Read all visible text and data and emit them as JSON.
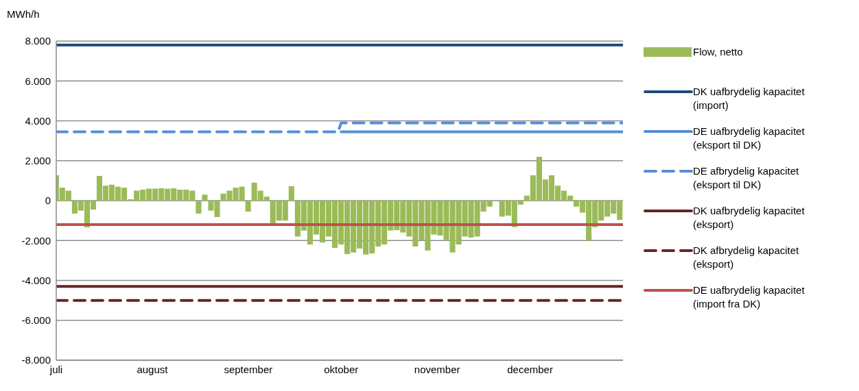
{
  "chart_data": {
    "type": "bar",
    "ylabel": "MWh/h",
    "xlim": [
      "--07-01",
      "--12-31"
    ],
    "xticks": [
      {
        "value": "--07-01",
        "label": "juli"
      },
      {
        "value": "--08-01",
        "label": "august"
      },
      {
        "value": "--09-01",
        "label": "september"
      },
      {
        "value": "--10-01",
        "label": "oktober"
      },
      {
        "value": "--11-01",
        "label": "november"
      },
      {
        "value": "--12-01",
        "label": "december"
      }
    ],
    "ylim": [
      -8000,
      8000
    ],
    "yticks": [
      {
        "value": -8000,
        "label": "-8.000"
      },
      {
        "value": -6000,
        "label": "-6.000"
      },
      {
        "value": -4000,
        "label": "-4.000"
      },
      {
        "value": -2000,
        "label": "-2.000"
      },
      0,
      {
        "value": 2000,
        "label": "2.000"
      },
      {
        "value": 4000,
        "label": "4.000"
      },
      {
        "value": 6000,
        "label": "6.000"
      },
      {
        "value": 8000,
        "label": "8.000"
      }
    ],
    "grid": "y",
    "legend": "right",
    "marker": "none",
    "series": [
      {
        "name": "Flow, netto",
        "color": "#9bbb59",
        "x": [
          "--07-01",
          "--07-03",
          "--07-05",
          "--07-07",
          "--07-09",
          "--07-11",
          "--07-13",
          "--07-15",
          "--07-17",
          "--07-19",
          "--07-21",
          "--07-23",
          "--07-25",
          "--07-27",
          "--07-29",
          "--07-31",
          "--08-02",
          "--08-04",
          "--08-06",
          "--08-08",
          "--08-10",
          "--08-12",
          "--08-14",
          "--08-16",
          "--08-18",
          "--08-20",
          "--08-22",
          "--08-24",
          "--08-26",
          "--08-28",
          "--08-30",
          "--09-01",
          "--09-03",
          "--09-05",
          "--09-07",
          "--09-09",
          "--09-11",
          "--09-13",
          "--09-15",
          "--09-17",
          "--09-19",
          "--09-21",
          "--09-23",
          "--09-25",
          "--09-27",
          "--09-29",
          "--10-01",
          "--10-03",
          "--10-05",
          "--10-07",
          "--10-09",
          "--10-11",
          "--10-13",
          "--10-15",
          "--10-17",
          "--10-19",
          "--10-21",
          "--10-23",
          "--10-25",
          "--10-27",
          "--10-29",
          "--10-31",
          "--11-02",
          "--11-04",
          "--11-06",
          "--11-08",
          "--11-10",
          "--11-12",
          "--11-14",
          "--11-16",
          "--11-18",
          "--11-20",
          "--11-22",
          "--11-24",
          "--11-26",
          "--11-28",
          "--11-30",
          "--12-02",
          "--12-04",
          "--12-06",
          "--12-08",
          "--12-10",
          "--12-12",
          "--12-14",
          "--12-16",
          "--12-18",
          "--12-20",
          "--12-22",
          "--12-24",
          "--12-26",
          "--12-28",
          "--12-30"
        ],
        "values": [
          1270,
          650,
          500,
          -650,
          -500,
          -1340,
          -450,
          1240,
          750,
          800,
          700,
          650,
          70,
          500,
          550,
          600,
          600,
          620,
          600,
          620,
          550,
          550,
          500,
          -650,
          300,
          -500,
          -820,
          350,
          500,
          650,
          700,
          -550,
          900,
          500,
          200,
          -1130,
          -1000,
          -1000,
          720,
          -1800,
          -1500,
          -2200,
          -1700,
          -2100,
          -1800,
          -2370,
          -2200,
          -2680,
          -2600,
          -2400,
          -2700,
          -2650,
          -2300,
          -2200,
          -1500,
          -1480,
          -1600,
          -1800,
          -2300,
          -2000,
          -2500,
          -1700,
          -1750,
          -2000,
          -2600,
          -2200,
          -1800,
          -1850,
          -1800,
          -550,
          -300,
          0,
          -800,
          -750,
          -1330,
          -200,
          250,
          1270,
          2200,
          1060,
          1270,
          750,
          500,
          250,
          -300,
          -600,
          -2000,
          -1330,
          -1000,
          -800,
          -650,
          -970
        ]
      },
      {
        "type": "line",
        "name": "DK uafbrydelig kapacitet (import)",
        "color": "#1f497d",
        "line_style": "solid",
        "x": [
          "--07-01",
          "--12-31"
        ],
        "values": [
          7800,
          7800
        ]
      },
      {
        "type": "line",
        "name": "DE uafbrydelig kapacitet (eksport til DK)",
        "color": "#558ed5",
        "line_style": "solid",
        "x": [
          "--10-01",
          "--12-31"
        ],
        "values": [
          3450,
          3450
        ]
      },
      {
        "type": "line",
        "name": "DE afbrydelig kapacitet (eksport til DK)",
        "color": "#558ed5",
        "line_style": "dashed",
        "x": [
          "--07-01",
          "--09-30",
          "--10-01",
          "--12-31"
        ],
        "values": [
          3450,
          3450,
          3900,
          3900
        ]
      },
      {
        "type": "line",
        "name": "DK uafbrydelig kapacitet (eksport)",
        "color": "#632523",
        "line_style": "solid",
        "x": [
          "--07-01",
          "--12-31"
        ],
        "values": [
          -4300,
          -4300
        ]
      },
      {
        "type": "line",
        "name": "DK afbrydelig kapacitet (eksport)",
        "color": "#632523",
        "line_style": "dashed",
        "x": [
          "--07-01",
          "--12-31"
        ],
        "values": [
          -5000,
          -5000
        ]
      },
      {
        "type": "line",
        "name": "DE uafbrydelig kapacitet (import fra DK)",
        "color": "#c0504d",
        "line_style": "solid",
        "x": [
          "--07-01",
          "--12-31"
        ],
        "values": [
          -1200,
          -1200
        ]
      }
    ]
  }
}
